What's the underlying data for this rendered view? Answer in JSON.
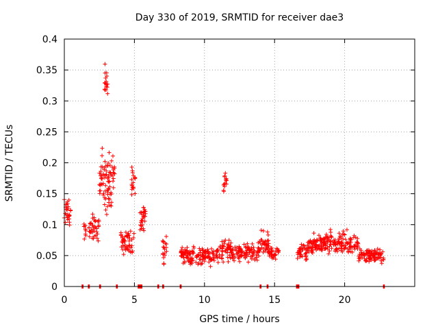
{
  "chart_data": {
    "type": "scatter",
    "title": "Day 330 of 2019, SRMTID for receiver dae3",
    "xlabel": "GPS time / hours",
    "ylabel": "SRMTID / TECUs",
    "xlim": [
      0,
      25
    ],
    "ylim": [
      0,
      0.4
    ],
    "grid": true,
    "marker": "+",
    "color": "#ff0000",
    "x_ticks": [
      "0",
      "5",
      "10",
      "15",
      "20"
    ],
    "x_tick_values": [
      0,
      5,
      10,
      15,
      20
    ],
    "y_ticks": [
      "0",
      "0.05",
      "0.1",
      "0.15",
      "0.2",
      "0.25",
      "0.3",
      "0.35",
      "0.4"
    ],
    "y_tick_values": [
      0,
      0.05,
      0.1,
      0.15,
      0.2,
      0.25,
      0.3,
      0.35,
      0.4
    ],
    "series": [
      {
        "name": "SRMTID",
        "segments": [
          {
            "x0": 0.0,
            "x1": 0.45,
            "y_mean": 0.12,
            "y_spread": 0.035,
            "n": 28
          },
          {
            "x0": 1.4,
            "x1": 1.55,
            "y_mean": 0.09,
            "y_spread": 0.02,
            "n": 10
          },
          {
            "x0": 1.75,
            "x1": 2.5,
            "y_mean": 0.095,
            "y_spread": 0.035,
            "n": 40
          },
          {
            "x0": 2.5,
            "x1": 3.4,
            "y_mean": 0.17,
            "y_spread": 0.07,
            "n": 70
          },
          {
            "x0": 2.85,
            "x1": 3.1,
            "y_mean": 0.33,
            "y_spread": 0.04,
            "n": 18
          },
          {
            "x0": 3.4,
            "x1": 3.6,
            "y_mean": 0.19,
            "y_spread": 0.04,
            "n": 12
          },
          {
            "x0": 4.0,
            "x1": 5.0,
            "y_mean": 0.07,
            "y_spread": 0.025,
            "n": 50
          },
          {
            "x0": 4.8,
            "x1": 5.1,
            "y_mean": 0.17,
            "y_spread": 0.035,
            "n": 18
          },
          {
            "x0": 5.4,
            "x1": 5.8,
            "y_mean": 0.11,
            "y_spread": 0.03,
            "n": 30
          },
          {
            "x0": 7.0,
            "x1": 7.3,
            "y_mean": 0.06,
            "y_spread": 0.03,
            "n": 18
          },
          {
            "x0": 8.3,
            "x1": 11.0,
            "y_mean": 0.05,
            "y_spread": 0.02,
            "n": 140
          },
          {
            "x0": 11.0,
            "x1": 11.9,
            "y_mean": 0.06,
            "y_spread": 0.025,
            "n": 45
          },
          {
            "x0": 11.35,
            "x1": 11.6,
            "y_mean": 0.17,
            "y_spread": 0.025,
            "n": 14
          },
          {
            "x0": 11.9,
            "x1": 14.0,
            "y_mean": 0.055,
            "y_spread": 0.02,
            "n": 110
          },
          {
            "x0": 14.0,
            "x1": 14.6,
            "y_mean": 0.07,
            "y_spread": 0.035,
            "n": 35
          },
          {
            "x0": 14.6,
            "x1": 15.3,
            "y_mean": 0.055,
            "y_spread": 0.015,
            "n": 30
          },
          {
            "x0": 16.6,
            "x1": 17.4,
            "y_mean": 0.055,
            "y_spread": 0.02,
            "n": 40
          },
          {
            "x0": 17.4,
            "x1": 21.0,
            "y_mean": 0.07,
            "y_spread": 0.025,
            "n": 200
          },
          {
            "x0": 21.0,
            "x1": 22.8,
            "y_mean": 0.05,
            "y_spread": 0.015,
            "n": 90
          }
        ],
        "zero_points": [
          1.3,
          1.75,
          2.55,
          3.75,
          5.3,
          5.4,
          5.5,
          6.7,
          7.05,
          8.3,
          14.0,
          14.5,
          16.6,
          16.7,
          22.8
        ]
      }
    ]
  }
}
